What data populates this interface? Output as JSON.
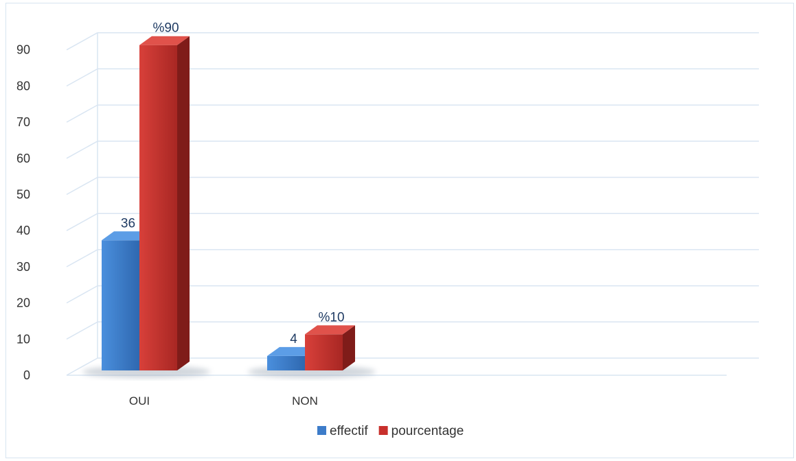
{
  "chart_data": {
    "type": "bar",
    "categories": [
      "OUI",
      "NON"
    ],
    "series": [
      {
        "name": "effectif",
        "values": [
          36,
          4
        ],
        "labels": [
          "36",
          "4"
        ],
        "color": "#3d7cc9"
      },
      {
        "name": "pourcentage",
        "values": [
          90,
          10
        ],
        "labels": [
          "%90",
          "%10"
        ],
        "color": "#c8302c"
      }
    ],
    "ylim": [
      0,
      90
    ],
    "yticks": [
      "0",
      "10",
      "20",
      "30",
      "40",
      "50",
      "60",
      "70",
      "80",
      "90"
    ],
    "grid": true,
    "legend_position": "bottom"
  }
}
